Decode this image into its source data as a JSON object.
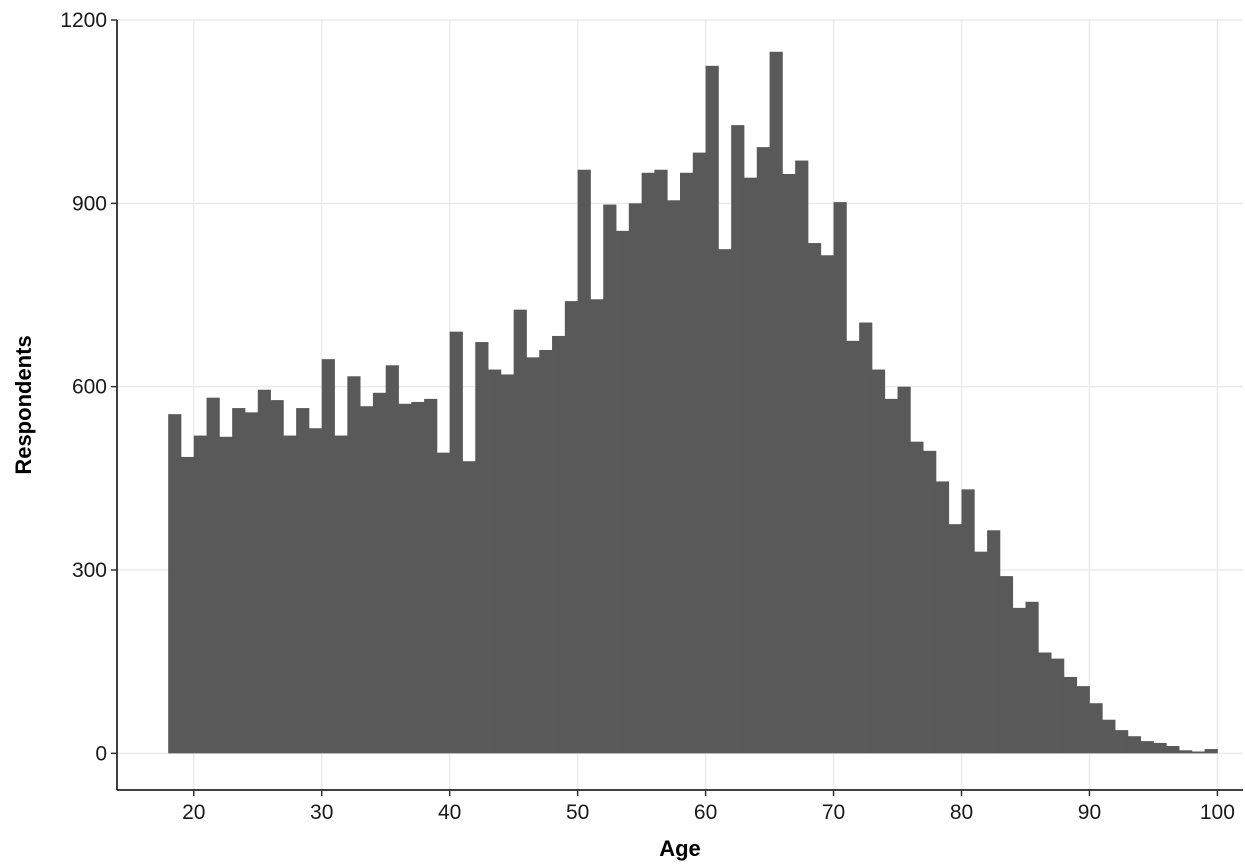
{
  "colors": {
    "bar_fill": "#595959",
    "grid": "#ebebeb",
    "background": "#ffffff",
    "axis": "#000000"
  },
  "chart_data": {
    "type": "bar",
    "title": "",
    "xlabel": "Age",
    "ylabel": "Respondents",
    "bin_width": 1,
    "xlim": [
      14,
      102
    ],
    "ylim": [
      -60,
      1200
    ],
    "x_ticks": [
      20,
      30,
      40,
      50,
      60,
      70,
      80,
      90,
      100
    ],
    "y_ticks": [
      0,
      300,
      600,
      900,
      1200
    ],
    "x_tick_labels": [
      "20",
      "30",
      "40",
      "50",
      "60",
      "70",
      "80",
      "90",
      "100"
    ],
    "y_tick_labels": [
      "0",
      "300",
      "600",
      "900",
      "1200"
    ],
    "grid": true,
    "legend": "none",
    "bin_start": [
      18,
      19,
      20,
      21,
      22,
      23,
      24,
      25,
      26,
      27,
      28,
      29,
      30,
      31,
      32,
      33,
      34,
      35,
      36,
      37,
      38,
      39,
      40,
      41,
      42,
      43,
      44,
      45,
      46,
      47,
      48,
      49,
      50,
      51,
      52,
      53,
      54,
      55,
      56,
      57,
      58,
      59,
      60,
      61,
      62,
      63,
      64,
      65,
      66,
      67,
      68,
      69,
      70,
      71,
      72,
      73,
      74,
      75,
      76,
      77,
      78,
      79,
      80,
      81,
      82,
      83,
      84,
      85,
      86,
      87,
      88,
      89,
      90,
      91,
      92,
      93,
      94,
      95,
      96,
      97,
      98,
      99
    ],
    "values": [
      555,
      485,
      520,
      582,
      518,
      565,
      558,
      595,
      578,
      520,
      565,
      532,
      645,
      520,
      617,
      568,
      590,
      635,
      572,
      575,
      580,
      492,
      690,
      478,
      673,
      628,
      620,
      726,
      648,
      660,
      683,
      740,
      955,
      743,
      898,
      855,
      900,
      950,
      955,
      905,
      950,
      983,
      1125,
      825,
      1028,
      942,
      992,
      1148,
      948,
      970,
      835,
      815,
      902,
      675,
      705,
      628,
      580,
      600,
      510,
      495,
      445,
      375,
      432,
      330,
      365,
      290,
      238,
      248,
      165,
      155,
      125,
      110,
      82,
      55,
      38,
      28,
      20,
      17,
      12,
      5,
      3,
      7
    ]
  }
}
